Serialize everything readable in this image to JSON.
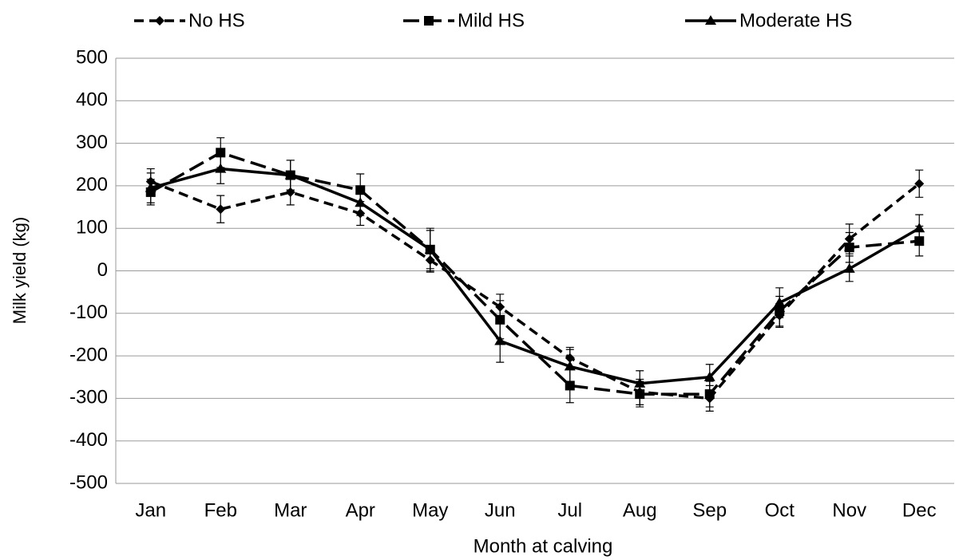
{
  "chart_data": {
    "type": "line",
    "x_label": "Month at calving",
    "y_label": "Milk yield (kg)",
    "categories": [
      "Jan",
      "Feb",
      "Mar",
      "Apr",
      "May",
      "Jun",
      "Jul",
      "Aug",
      "Sep",
      "Oct",
      "Nov",
      "Dec"
    ],
    "series": [
      {
        "name": "No HS",
        "color": "#000000",
        "dash": "dashed",
        "marker": "diamond",
        "values": [
          210,
          145,
          185,
          135,
          25,
          -85,
          -205,
          -285,
          -300,
          -105,
          75,
          205
        ],
        "errors": [
          30,
          32,
          30,
          28,
          28,
          30,
          25,
          30,
          30,
          28,
          35,
          32
        ]
      },
      {
        "name": "Mild HS",
        "color": "#000000",
        "dash": "longdash",
        "marker": "square",
        "values": [
          185,
          278,
          225,
          190,
          50,
          -115,
          -270,
          -290,
          -290,
          -95,
          55,
          70
        ],
        "errors": [
          30,
          35,
          35,
          38,
          50,
          45,
          40,
          30,
          30,
          35,
          35,
          35
        ]
      },
      {
        "name": "Moderate HS",
        "color": "#000000",
        "dash": "solid",
        "marker": "triangle",
        "values": [
          195,
          240,
          225,
          160,
          50,
          -165,
          -225,
          -265,
          -250,
          -75,
          5,
          100
        ],
        "errors": [
          35,
          35,
          35,
          30,
          45,
          50,
          40,
          30,
          30,
          35,
          30,
          32
        ]
      }
    ],
    "ylim": [
      -500,
      500
    ],
    "yticks": [
      -500,
      -400,
      -300,
      -200,
      -100,
      0,
      100,
      200,
      300,
      400,
      500
    ],
    "grid": true
  }
}
